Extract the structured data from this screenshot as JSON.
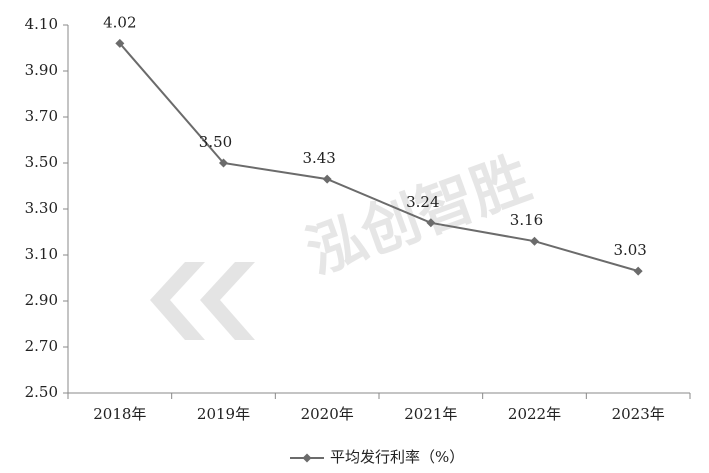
{
  "chart_data": {
    "type": "line",
    "watermark": "泓创智胜",
    "categories": [
      "2018年",
      "2019年",
      "2020年",
      "2021年",
      "2022年",
      "2023年"
    ],
    "series": [
      {
        "name": "平均发行利率（%）",
        "color": "#6b6b6b",
        "values": [
          4.02,
          3.5,
          3.43,
          3.24,
          3.16,
          3.03
        ],
        "value_labels": [
          "4.02",
          "3.50",
          "3.43",
          "3.24",
          "3.16",
          "3.03"
        ]
      }
    ],
    "ylim": [
      2.5,
      4.1
    ],
    "yticks": [
      {
        "value": 2.5,
        "label": "2.50"
      },
      {
        "value": 2.7,
        "label": "2.70"
      },
      {
        "value": 2.9,
        "label": "2.90"
      },
      {
        "value": 3.1,
        "label": "3.10"
      },
      {
        "value": 3.3,
        "label": "3.30"
      },
      {
        "value": 3.5,
        "label": "3.50"
      },
      {
        "value": 3.7,
        "label": "3.70"
      },
      {
        "value": 3.9,
        "label": "3.90"
      },
      {
        "value": 4.1,
        "label": "4.10"
      }
    ],
    "legend": "bottom"
  }
}
